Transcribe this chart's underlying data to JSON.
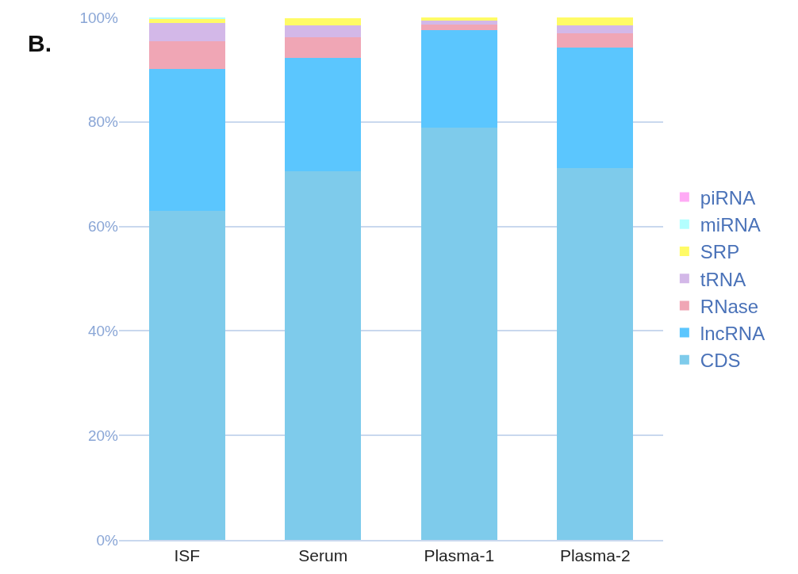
{
  "chart_data": {
    "type": "bar",
    "stacked": true,
    "annotations": [
      "B."
    ],
    "categories": [
      "ISF",
      "Serum",
      "Plasma-1",
      "Plasma-2"
    ],
    "series": [
      {
        "name": "CDS",
        "color": "#7ecbeb",
        "values": [
          63.0,
          70.5,
          78.9,
          71.1
        ]
      },
      {
        "name": "lncRNA",
        "color": "#5bc6fe",
        "values": [
          27.2,
          21.8,
          18.6,
          23.1
        ]
      },
      {
        "name": "RNase",
        "color": "#f0a6b5",
        "values": [
          5.3,
          3.9,
          1.1,
          2.7
        ]
      },
      {
        "name": "tRNA",
        "color": "#d3b8e8",
        "values": [
          3.5,
          2.3,
          0.8,
          1.6
        ]
      },
      {
        "name": "SRP",
        "color": "#fffb66",
        "values": [
          0.7,
          1.4,
          0.6,
          1.5
        ]
      },
      {
        "name": "miRNA",
        "color": "#b3ffff",
        "values": [
          0.3,
          null,
          0,
          0
        ]
      },
      {
        "name": "piRNA",
        "color": "#ffaaf5",
        "values": [
          0,
          0,
          0,
          0
        ]
      }
    ],
    "ylim": [
      0,
      100
    ],
    "yticks": [
      {
        "value": 0,
        "label": "0%"
      },
      {
        "value": 20,
        "label": "20%"
      },
      {
        "value": 40,
        "label": "40%"
      },
      {
        "value": 60,
        "label": "60%"
      },
      {
        "value": 80,
        "label": "80%"
      },
      {
        "value": 100,
        "label": "100%"
      }
    ],
    "grid": "y",
    "legend": "right"
  }
}
